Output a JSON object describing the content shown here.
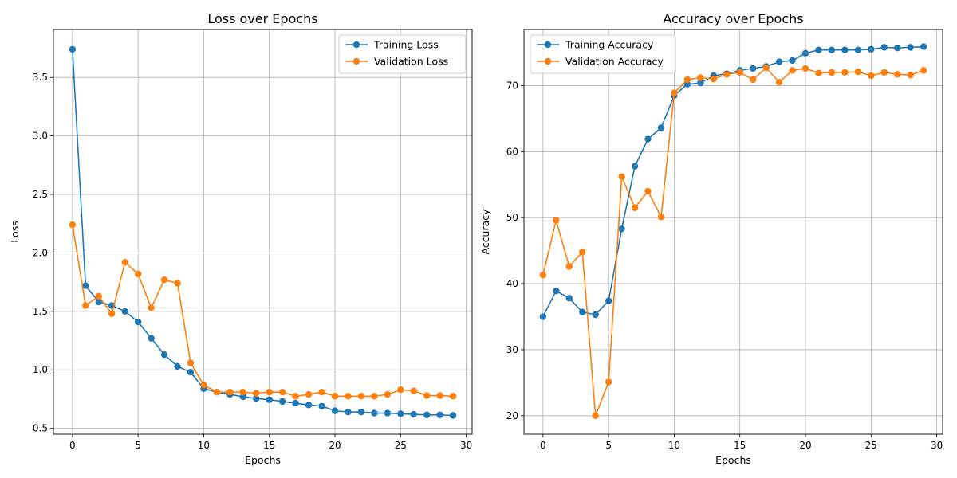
{
  "chart_data": [
    {
      "type": "line",
      "title": "Loss over Epochs",
      "xlabel": "Epochs",
      "ylabel": "Loss",
      "xlim": [
        -1.45,
        30.45
      ],
      "ylim": [
        0.45,
        3.91
      ],
      "xticks": [
        0,
        5,
        10,
        15,
        20,
        25,
        30
      ],
      "yticks": [
        0.5,
        1.0,
        1.5,
        2.0,
        2.5,
        3.0,
        3.5
      ],
      "ytick_labels": [
        "0.5",
        "1.0",
        "1.5",
        "2.0",
        "2.5",
        "3.0",
        "3.5"
      ],
      "grid": true,
      "legend_position": "top-right",
      "x": [
        0,
        1,
        2,
        3,
        4,
        5,
        6,
        7,
        8,
        9,
        10,
        11,
        12,
        13,
        14,
        15,
        16,
        17,
        18,
        19,
        20,
        21,
        22,
        23,
        24,
        25,
        26,
        27,
        28,
        29
      ],
      "series": [
        {
          "name": "Training Loss",
          "color": "#1f77b4",
          "values": [
            3.74,
            1.72,
            1.58,
            1.55,
            1.5,
            1.41,
            1.27,
            1.13,
            1.03,
            0.98,
            0.84,
            0.81,
            0.79,
            0.77,
            0.755,
            0.745,
            0.73,
            0.715,
            0.7,
            0.69,
            0.65,
            0.64,
            0.64,
            0.63,
            0.63,
            0.625,
            0.62,
            0.615,
            0.615,
            0.61
          ]
        },
        {
          "name": "Validation Loss",
          "color": "#ff7f0e",
          "values": [
            2.24,
            1.55,
            1.63,
            1.48,
            1.92,
            1.82,
            1.53,
            1.77,
            1.74,
            1.06,
            0.87,
            0.81,
            0.81,
            0.81,
            0.8,
            0.81,
            0.81,
            0.775,
            0.79,
            0.81,
            0.775,
            0.775,
            0.775,
            0.775,
            0.79,
            0.83,
            0.82,
            0.78,
            0.78,
            0.775
          ]
        }
      ]
    },
    {
      "type": "line",
      "title": "Accuracy over Epochs",
      "xlabel": "Epochs",
      "ylabel": "Accuracy",
      "xlim": [
        -1.45,
        30.45
      ],
      "ylim": [
        17.2,
        78.5
      ],
      "xticks": [
        0,
        5,
        10,
        15,
        20,
        25,
        30
      ],
      "yticks": [
        20,
        30,
        40,
        50,
        60,
        70
      ],
      "ytick_labels": [
        "20",
        "30",
        "40",
        "50",
        "60",
        "70"
      ],
      "grid": true,
      "legend_position": "top-left",
      "x": [
        0,
        1,
        2,
        3,
        4,
        5,
        6,
        7,
        8,
        9,
        10,
        11,
        12,
        13,
        14,
        15,
        16,
        17,
        18,
        19,
        20,
        21,
        22,
        23,
        24,
        25,
        26,
        27,
        28,
        29
      ],
      "series": [
        {
          "name": "Training Accuracy",
          "color": "#1f77b4",
          "values": [
            35.0,
            38.9,
            37.8,
            35.7,
            35.3,
            37.4,
            48.3,
            57.8,
            61.9,
            63.6,
            68.5,
            70.2,
            70.4,
            71.5,
            71.8,
            72.3,
            72.6,
            72.9,
            73.6,
            73.8,
            74.9,
            75.4,
            75.4,
            75.4,
            75.4,
            75.5,
            75.8,
            75.7,
            75.8,
            75.9
          ]
        },
        {
          "name": "Validation Accuracy",
          "color": "#ff7f0e",
          "values": [
            41.3,
            49.6,
            42.6,
            44.8,
            20.0,
            25.1,
            56.2,
            51.5,
            54.0,
            50.1,
            68.9,
            70.9,
            71.2,
            71.0,
            71.7,
            72.0,
            70.9,
            72.7,
            70.5,
            72.3,
            72.6,
            71.9,
            72.0,
            72.0,
            72.1,
            71.5,
            72.0,
            71.7,
            71.6,
            72.3
          ]
        }
      ]
    }
  ]
}
